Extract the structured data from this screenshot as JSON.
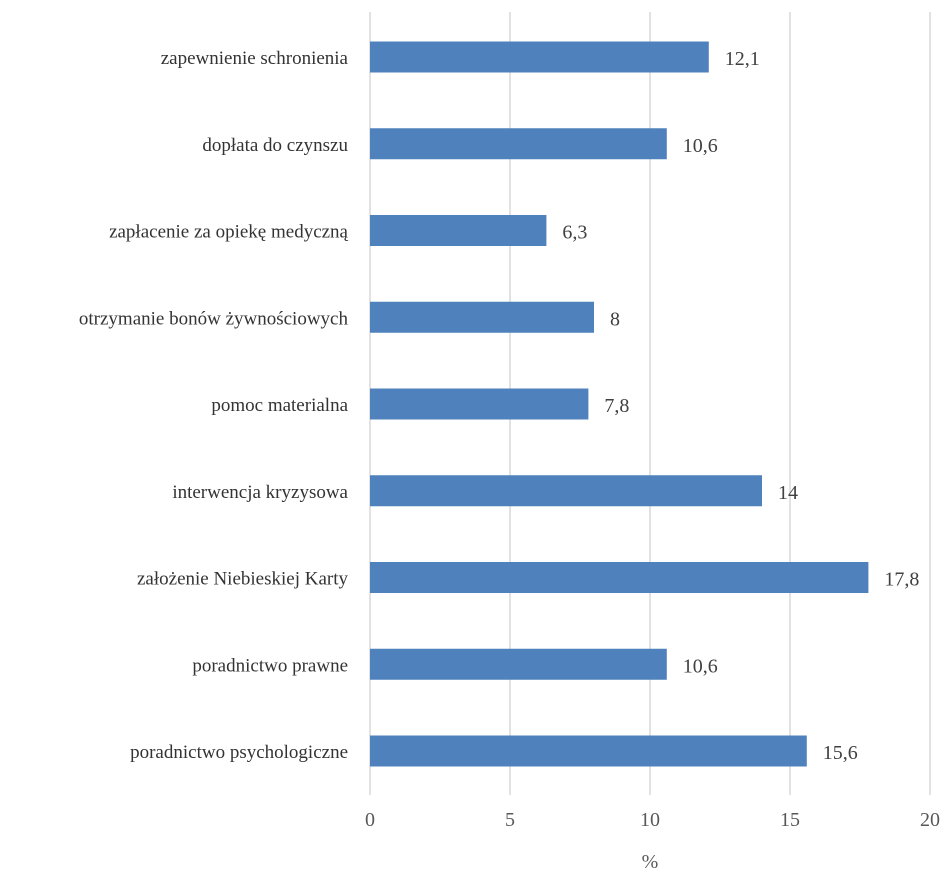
{
  "chart_data": {
    "type": "bar",
    "orientation": "horizontal",
    "categories": [
      "zapewnienie schronienia",
      "dopłata do czynszu",
      "zapłacenie za opiekę medyczną",
      "otrzymanie bonów żywnościowych",
      "pomoc materialna",
      "interwencja kryzysowa",
      "założenie Niebieskiej Karty",
      "poradnictwo prawne",
      "poradnictwo psychologiczne"
    ],
    "values": [
      12.1,
      10.6,
      6.3,
      8,
      7.8,
      14,
      17.8,
      10.6,
      15.6
    ],
    "value_labels": [
      "12,1",
      "10,6",
      "6,3",
      "8",
      "7,8",
      "14",
      "17,8",
      "10,6",
      "15,6"
    ],
    "xlabel": "%",
    "xlim": [
      0,
      20
    ],
    "xticks": [
      0,
      5,
      10,
      15,
      20
    ],
    "xtick_labels": [
      "0",
      "5",
      "10",
      "15",
      "20"
    ],
    "grid": "vertical",
    "legend": "none",
    "bar_color": "#4f81bd"
  }
}
